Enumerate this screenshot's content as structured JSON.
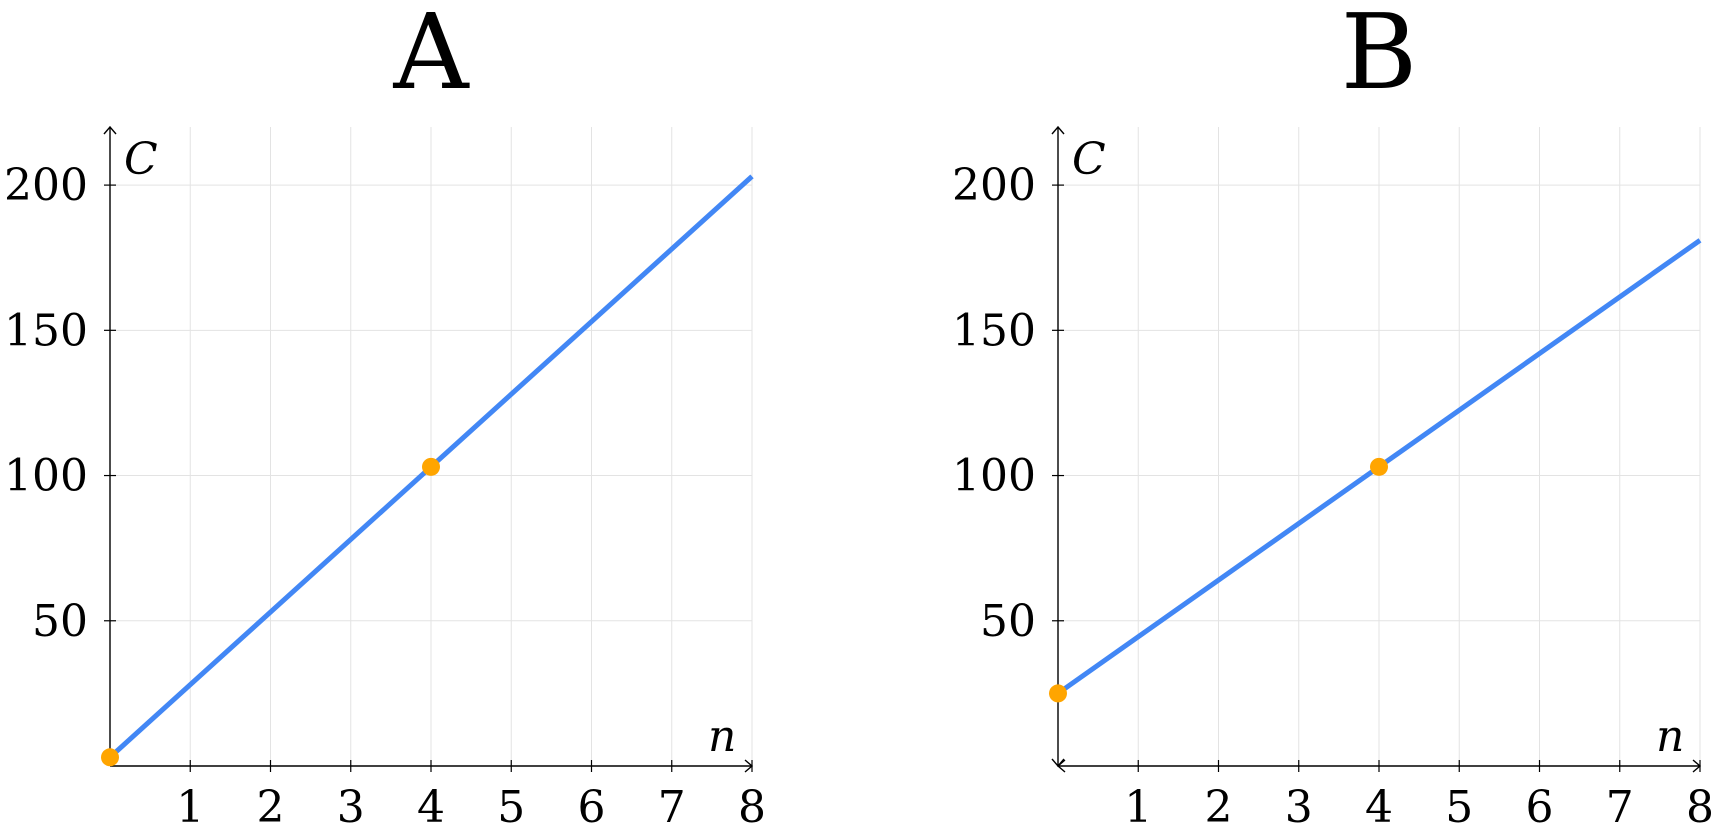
{
  "chart_data": [
    {
      "type": "line",
      "title": "A",
      "xlabel": "n",
      "ylabel": "C",
      "xlim": [
        0,
        8
      ],
      "ylim": [
        0,
        220
      ],
      "xticks": [
        1,
        2,
        3,
        4,
        5,
        6,
        7,
        8
      ],
      "yticks": [
        50,
        100,
        150,
        200
      ],
      "grid": true,
      "line_color": "#4287f5",
      "point_color": "#ffa500",
      "series": [
        {
          "x": [
            0,
            8
          ],
          "y": [
            3,
            203
          ]
        }
      ],
      "points": [
        {
          "x": 0,
          "y": 3
        },
        {
          "x": 4,
          "y": 103
        }
      ]
    },
    {
      "type": "line",
      "title": "B",
      "xlabel": "n",
      "ylabel": "C",
      "xlim": [
        0,
        8
      ],
      "ylim": [
        0,
        220
      ],
      "xticks": [
        1,
        2,
        3,
        4,
        5,
        6,
        7,
        8
      ],
      "yticks": [
        50,
        100,
        150,
        200
      ],
      "grid": true,
      "line_color": "#4287f5",
      "point_color": "#ffa500",
      "series": [
        {
          "x": [
            0,
            8
          ],
          "y": [
            25,
            181
          ]
        }
      ],
      "points": [
        {
          "x": 0,
          "y": 25
        },
        {
          "x": 4,
          "y": 103
        }
      ]
    }
  ]
}
